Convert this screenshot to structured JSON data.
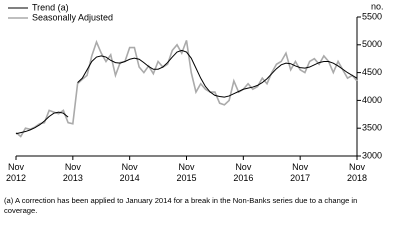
{
  "chart_data": {
    "type": "line",
    "y_unit": "no.",
    "footnote": "(a) A correction has been applied to January 2014 for a break in the Non-Banks series due to a change in coverage.",
    "categories": [
      "Nov 2012",
      null,
      null,
      null,
      null,
      null,
      null,
      null,
      null,
      null,
      null,
      null,
      "Nov 2013",
      null,
      null,
      null,
      null,
      null,
      null,
      null,
      null,
      null,
      null,
      null,
      "Nov 2014",
      null,
      null,
      null,
      null,
      null,
      null,
      null,
      null,
      null,
      null,
      null,
      "Nov 2015",
      null,
      null,
      null,
      null,
      null,
      null,
      null,
      null,
      null,
      null,
      null,
      "Nov 2016",
      null,
      null,
      null,
      null,
      null,
      null,
      null,
      null,
      null,
      null,
      null,
      "Nov 2017",
      null,
      null,
      null,
      null,
      null,
      null,
      null,
      null,
      null,
      null,
      null,
      "Nov 2018"
    ],
    "series": [
      {
        "name": "Trend (a)",
        "color": "#000000",
        "width": 1,
        "values": [
          3400,
          3420,
          3440,
          3470,
          3510,
          3560,
          3630,
          3710,
          3770,
          3790,
          3770,
          3700,
          null,
          4320,
          4400,
          4550,
          4700,
          4780,
          4800,
          4780,
          4720,
          4680,
          4670,
          4700,
          4740,
          4760,
          4740,
          4680,
          4610,
          4560,
          4560,
          4600,
          4680,
          4780,
          4870,
          4900,
          4870,
          4760,
          4580,
          4400,
          4250,
          4150,
          4090,
          4070,
          4060,
          4080,
          4120,
          4160,
          4200,
          4220,
          4240,
          4270,
          4320,
          4390,
          4480,
          4570,
          4640,
          4670,
          4660,
          4620,
          4590,
          4580,
          4600,
          4640,
          4680,
          4700,
          4700,
          4670,
          4620,
          4560,
          4500,
          4450,
          4400
        ]
      },
      {
        "name": "Seasonally Adjusted",
        "color": "#aaaaaa",
        "width": 1.6,
        "values": [
          3420,
          3350,
          3500,
          3480,
          3520,
          3580,
          3600,
          3820,
          3790,
          3760,
          3820,
          3600,
          3580,
          4300,
          4380,
          4450,
          4800,
          5050,
          4850,
          4700,
          4820,
          4450,
          4680,
          4700,
          4950,
          4950,
          4600,
          4500,
          4620,
          4480,
          4700,
          4600,
          4650,
          4900,
          5000,
          4850,
          5080,
          4500,
          4150,
          4300,
          4200,
          4150,
          4150,
          3950,
          3920,
          4000,
          4350,
          4150,
          4200,
          4300,
          4200,
          4250,
          4400,
          4300,
          4500,
          4650,
          4700,
          4850,
          4550,
          4700,
          4550,
          4500,
          4700,
          4750,
          4650,
          4800,
          4700,
          4500,
          4700,
          4550,
          4400,
          4450,
          4350
        ]
      }
    ],
    "ylim": [
      3000,
      5500
    ],
    "yticks": [
      3000,
      3500,
      4000,
      4500,
      5000,
      5500
    ],
    "grid": false,
    "legend": "top-left"
  }
}
